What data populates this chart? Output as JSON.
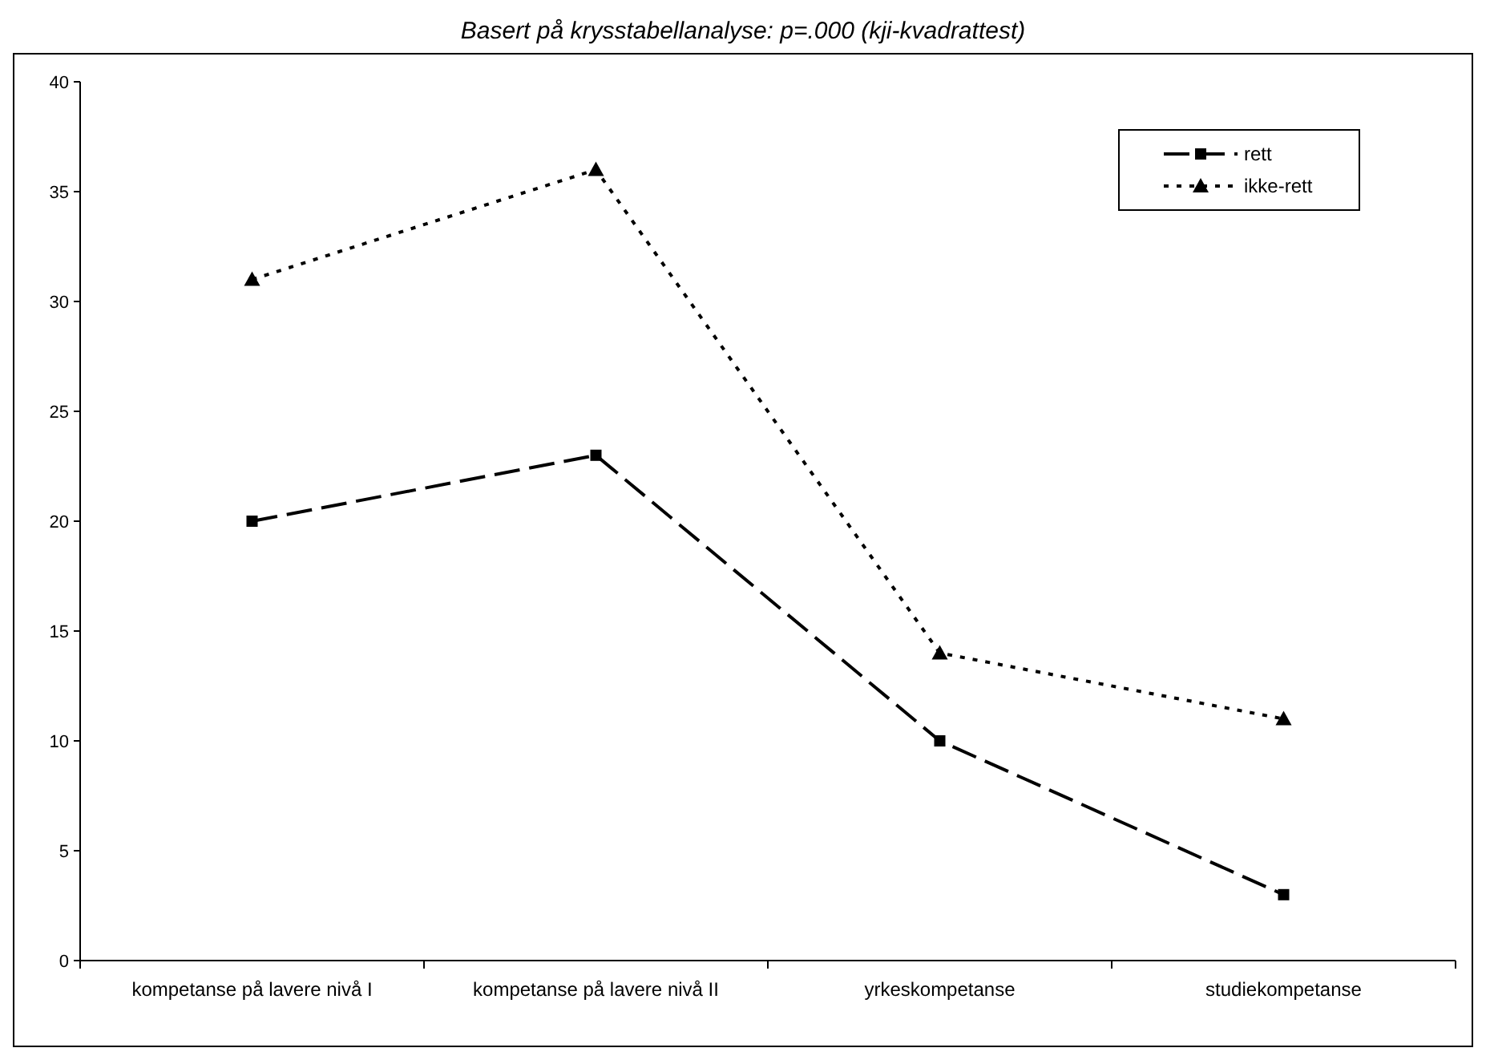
{
  "chart_data": {
    "type": "line",
    "title": "Basert på krysstabellanalyse: p=.000 (kji-kvadrattest)",
    "categories": [
      "kompetanse på lavere nivå I",
      "kompetanse på lavere nivå II",
      "yrkeskompetanse",
      "studiekompetanse"
    ],
    "series": [
      {
        "name": "rett",
        "color": "#000000",
        "values": [
          20,
          23,
          10,
          3
        ],
        "marker": "square",
        "line_style": "dashed"
      },
      {
        "name": "ikke-rett",
        "color": "#000000",
        "values": [
          31,
          36,
          14,
          11
        ],
        "marker": "triangle",
        "line_style": "dotted"
      }
    ],
    "ylim": [
      0,
      40
    ],
    "yticks": [
      0,
      5,
      10,
      15,
      20,
      25,
      30,
      35,
      40
    ],
    "grid": false,
    "legend": "top right"
  }
}
